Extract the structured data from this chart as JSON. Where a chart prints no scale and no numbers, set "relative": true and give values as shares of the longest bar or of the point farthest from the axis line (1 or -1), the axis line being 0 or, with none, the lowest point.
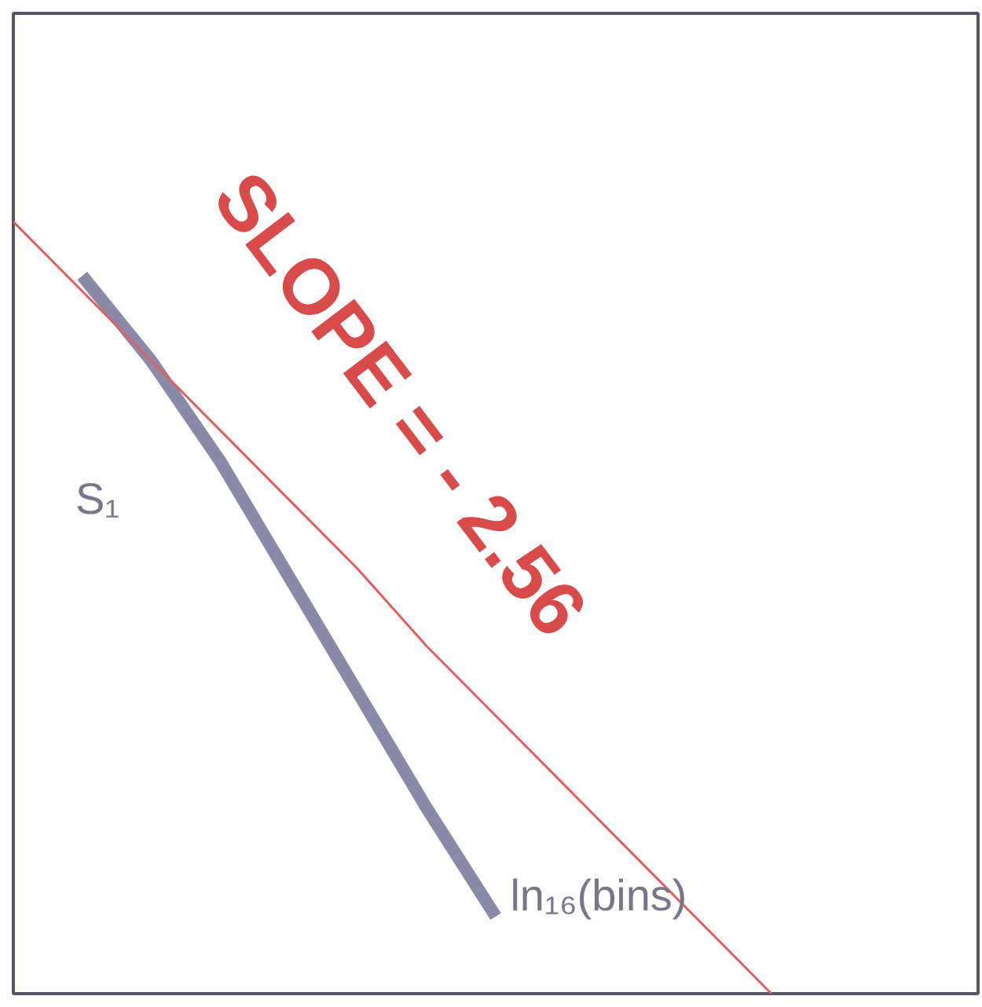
{
  "chart_data": {
    "type": "line",
    "relative": true,
    "xlabel": "ln₁₆(bins)",
    "ylabel": "S₁",
    "categories": [
      null,
      null,
      null,
      null,
      null,
      null,
      null,
      null,
      null,
      null,
      null,
      null,
      null,
      null,
      null
    ],
    "series": [
      {
        "color": "#8a8aa8",
        "values": [
          null,
          0.93,
          0.82,
          0.69,
          0.54,
          0.39,
          0.24,
          0.1,
          null,
          null,
          null,
          null,
          null,
          null,
          null
        ]
      },
      {
        "color": "#e06060",
        "values": [
          1,
          0.91,
          0.82,
          0.73,
          0.64,
          0.55,
          0.45,
          0.36,
          0.27,
          0.18,
          0.09,
          0,
          null,
          null,
          null
        ]
      }
    ],
    "annotations": [
      "SLOPE = - 2.56"
    ]
  }
}
